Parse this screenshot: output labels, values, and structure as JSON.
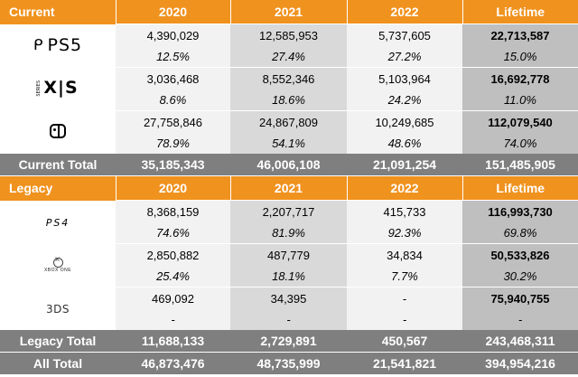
{
  "current": {
    "header": [
      "Current",
      "2020",
      "2021",
      "2022",
      "Lifetime"
    ],
    "rows": [
      {
        "platform": "PS5",
        "logo_text": "PS5",
        "icon": "ps5-logo-icon",
        "values": [
          "4,390,029",
          "12,585,953",
          "5,737,605",
          "22,713,587"
        ],
        "percents": [
          "12.5%",
          "27.4%",
          "27.2%",
          "15.0%"
        ]
      },
      {
        "platform": "Xbox Series X|S",
        "logo_text": "X|S",
        "logo_sub": "SERIES",
        "icon": "xbox-series-logo-icon",
        "values": [
          "3,036,468",
          "8,552,346",
          "5,103,964",
          "16,692,778"
        ],
        "percents": [
          "8.6%",
          "18.6%",
          "24.2%",
          "11.0%"
        ]
      },
      {
        "platform": "Nintendo Switch",
        "icon": "nintendo-switch-logo-icon",
        "values": [
          "27,758,846",
          "24,867,809",
          "10,249,685",
          "112,079,540"
        ],
        "percents": [
          "78.9%",
          "54.1%",
          "48.6%",
          "74.0%"
        ]
      }
    ],
    "total": [
      "Current Total",
      "35,185,343",
      "46,006,108",
      "21,091,254",
      "151,485,905"
    ]
  },
  "legacy": {
    "header": [
      "Legacy",
      "2020",
      "2021",
      "2022",
      "Lifetime"
    ],
    "rows": [
      {
        "platform": "PS4",
        "logo_text": "PS4",
        "icon": "ps4-logo-icon",
        "values": [
          "8,368,159",
          "2,207,717",
          "415,733",
          "116,993,730"
        ],
        "percents": [
          "74.6%",
          "81.9%",
          "92.3%",
          "69.8%"
        ]
      },
      {
        "platform": "Xbox One",
        "logo_text": "XBOX ONE",
        "icon": "xbox-one-logo-icon",
        "values": [
          "2,850,882",
          "487,779",
          "34,834",
          "50,533,826"
        ],
        "percents": [
          "25.4%",
          "18.1%",
          "7.7%",
          "30.2%"
        ]
      },
      {
        "platform": "3DS",
        "logo_text": "3DS",
        "icon": "3ds-logo-icon",
        "values": [
          "469,092",
          "34,395",
          "-",
          "75,940,755"
        ],
        "percents": [
          "-",
          "-",
          "-",
          "-"
        ]
      }
    ],
    "total": [
      "Legacy Total",
      "11,688,133",
      "2,729,891",
      "450,567",
      "243,468,311"
    ]
  },
  "all_total": [
    "All Total",
    "46,873,476",
    "48,735,999",
    "21,541,821",
    "394,954,216"
  ],
  "colors": {
    "header": "#f0921e",
    "total": "#7f7f7f",
    "col_light": "#f2f2f2",
    "col_mid": "#d9d9d9",
    "col_dark": "#bfbfbf"
  }
}
